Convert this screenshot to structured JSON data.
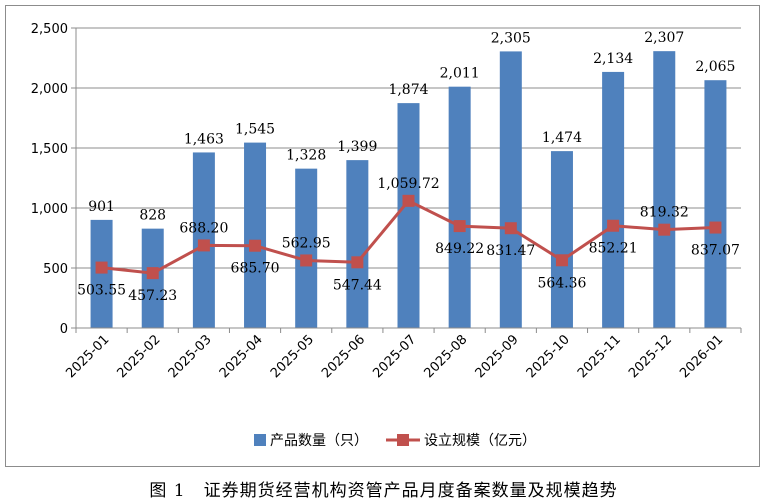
{
  "caption": "图 1　证券期货经营机构资管产品月度备案数量及规模趋势",
  "chart_data": {
    "type": "bar",
    "title": "",
    "xlabel": "",
    "ylabel": "",
    "ylim": [
      0,
      2500
    ],
    "yticks": [
      0,
      500,
      1000,
      1500,
      2000,
      2500
    ],
    "ytick_labels": [
      "0",
      "500",
      "1,000",
      "1,500",
      "2,000",
      "2,500"
    ],
    "grid": true,
    "legend_position": "bottom",
    "categories": [
      "2025-01",
      "2025-02",
      "2025-03",
      "2025-04",
      "2025-05",
      "2025-06",
      "2025-07",
      "2025-08",
      "2025-09",
      "2025-10",
      "2025-11",
      "2025-12",
      "2026-01"
    ],
    "series": [
      {
        "name": "产品数量（只）",
        "type": "bar",
        "color": "#4f81bd",
        "values": [
          901,
          828,
          1463,
          1545,
          1328,
          1399,
          1874,
          2011,
          2305,
          1474,
          2134,
          2307,
          2065
        ],
        "labels": [
          "901",
          "828",
          "1,463",
          "1,545",
          "1,328",
          "1,399",
          "1,874",
          "2,011",
          "2,305",
          "1,474",
          "2,134",
          "2,307",
          "2,065"
        ]
      },
      {
        "name": "设立规模（亿元）",
        "type": "line",
        "color": "#c0504d",
        "values": [
          503.55,
          457.23,
          688.2,
          685.7,
          562.95,
          547.44,
          1059.72,
          849.22,
          831.47,
          564.36,
          852.21,
          819.32,
          837.07
        ],
        "labels": [
          "503.55",
          "457.23",
          "688.20",
          "685.70",
          "562.95",
          "547.44",
          "1,059.72",
          "849.22",
          "831.47",
          "564.36",
          "852.21",
          "819.32",
          "837.07"
        ]
      }
    ]
  }
}
